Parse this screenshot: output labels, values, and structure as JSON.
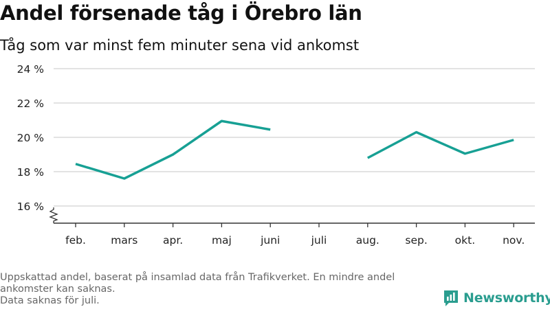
{
  "title": "Andel försenade tåg i Örebro län",
  "subtitle": "Tåg som var minst fem minuter sena vid ankomst",
  "footer": {
    "line1": "Uppskattad andel, baserat på insamlad data från Trafikverket. En mindre andel",
    "line2": "ankomster kan saknas.",
    "line3": "Data saknas för juli."
  },
  "logo": {
    "text": "Newsworthy",
    "icon": "newsworthy-logo-icon"
  },
  "colors": {
    "line": "#17a094",
    "grid": "#d9d9d9",
    "axis": "#333333"
  },
  "chart_data": {
    "type": "line",
    "categories": [
      "feb.",
      "mars",
      "apr.",
      "maj",
      "juni",
      "juli",
      "aug.",
      "sep.",
      "okt.",
      "nov."
    ],
    "values": [
      18.45,
      17.6,
      19.0,
      20.95,
      20.45,
      null,
      18.8,
      20.3,
      19.05,
      19.85
    ],
    "y_ticks": [
      16,
      18,
      20,
      22,
      24
    ],
    "y_tick_labels": [
      "16 %",
      "18 %",
      "20 %",
      "22 %",
      "24 %"
    ],
    "ylim": [
      16,
      24
    ],
    "axis_break": true,
    "grid": true
  }
}
